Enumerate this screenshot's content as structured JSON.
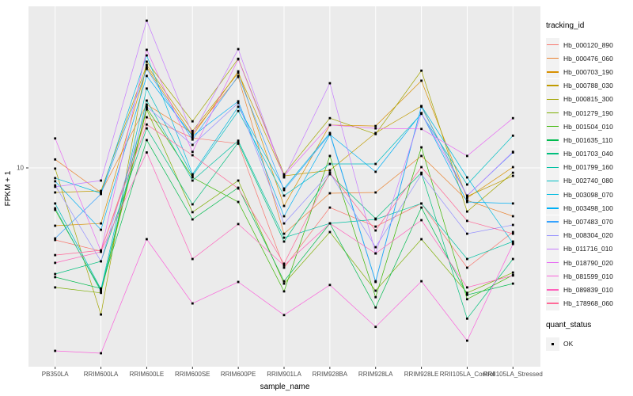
{
  "figure": {
    "y_axis": {
      "title": "FPKM + 1",
      "scale": "log10",
      "tick_labels": [
        "10"
      ]
    },
    "x_axis": {
      "title": "sample_name"
    },
    "legend": {
      "color_title": "tracking_id",
      "shape_title": "quant_status",
      "shape_items": [
        {
          "label": "OK",
          "marker": "black-square"
        }
      ]
    }
  },
  "chart_data": {
    "type": "line",
    "title": "",
    "xlabel": "sample_name",
    "ylabel": "FPKM + 1",
    "y_scale": "log10",
    "y_ticks": [
      10
    ],
    "ylim": [
      0.86,
      74
    ],
    "grid": "major-only",
    "legend_position": "right",
    "panel_bg": "#EBEBEB",
    "grid_color": "#FFFFFF",
    "point_color": "#000000",
    "quant_status": "OK",
    "categories": [
      "PB350LA",
      "RRIM600LA",
      "RRIM600LE",
      "RRIM600SE",
      "RRIM600PE",
      "RRIM901LA",
      "RRIM928BA",
      "RRIM928LA",
      "RRIM928LE",
      "RRII105LA_Control",
      "RRII105LA_Stressed"
    ],
    "series": [
      {
        "name": "Hb_000120_890",
        "color": "#F8766D",
        "values": [
          4.1,
          3.57,
          18.7,
          14.5,
          13.5,
          2.91,
          6.12,
          4.84,
          6.44,
          2.91,
          4.52
        ]
      },
      {
        "name": "Hb_000476_060",
        "color": "#EA8331",
        "values": [
          11.1,
          7.38,
          21.9,
          15.4,
          30.8,
          4.43,
          7.31,
          7.38,
          11.6,
          6.69,
          5.5
        ]
      },
      {
        "name": "Hb_000703_190",
        "color": "#D89000",
        "values": [
          4.89,
          5.03,
          34.7,
          14.9,
          33.0,
          6.25,
          17.0,
          16.8,
          29.4,
          6.89,
          10.1
        ]
      },
      {
        "name": "Hb_000788_030",
        "color": "#C09B00",
        "values": [
          7.38,
          7.53,
          35.7,
          15.8,
          32.4,
          9.06,
          9.71,
          15.4,
          21.5,
          7.03,
          9.06
        ]
      },
      {
        "name": "Hb_000815_300",
        "color": "#A3A500",
        "values": [
          9.91,
          1.63,
          37.2,
          17.8,
          38.6,
          9.25,
          18.5,
          15.2,
          33.3,
          5.83,
          9.42
        ]
      },
      {
        "name": "Hb_001279_190",
        "color": "#7CAE00",
        "values": [
          2.28,
          2.13,
          20.6,
          5.78,
          8.55,
          2.39,
          4.52,
          2.19,
          4.14,
          2.13,
          2.74
        ]
      },
      {
        "name": "Hb_001504_010",
        "color": "#39B600",
        "values": [
          5.95,
          2.21,
          21.0,
          8.89,
          6.56,
          2.17,
          11.6,
          2.02,
          12.9,
          1.97,
          2.66
        ]
      },
      {
        "name": "Hb_001635_110",
        "color": "#00BB4E",
        "values": [
          2.59,
          2.25,
          14.1,
          5.29,
          7.83,
          2.46,
          5.03,
          1.78,
          6.12,
          2.08,
          2.39
        ]
      },
      {
        "name": "Hb_001703_040",
        "color": "#00BF7D",
        "values": [
          2.69,
          3.15,
          16.3,
          6.37,
          13.7,
          4.02,
          9.25,
          5.34,
          9.42,
          1.55,
          3.24
        ]
      },
      {
        "name": "Hb_001799_160",
        "color": "#00C1A3",
        "values": [
          6.07,
          2.17,
          23.0,
          8.55,
          14.0,
          4.22,
          5.03,
          5.29,
          6.44,
          3.24,
          4.02
        ]
      },
      {
        "name": "Hb_002740_080",
        "color": "#00BFC4",
        "values": [
          6.44,
          2.23,
          26.7,
          9.06,
          20.2,
          7.1,
          10.5,
          10.5,
          19.5,
          8.14,
          14.9
        ]
      },
      {
        "name": "Hb_003098_070",
        "color": "#00BAE0",
        "values": [
          8.81,
          7.31,
          40.2,
          9.25,
          21.3,
          7.75,
          15.4,
          2.46,
          21.5,
          8.89,
          3.94
        ]
      },
      {
        "name": "Hb_003498_100",
        "color": "#00B0F6",
        "values": [
          8.47,
          4.65,
          31.2,
          14.8,
          22.8,
          5.5,
          15.1,
          9.53,
          19.7,
          6.56,
          6.44
        ]
      },
      {
        "name": "Hb_007483_070",
        "color": "#35A2FF",
        "values": [
          4.18,
          7.24,
          34.0,
          14.2,
          31.2,
          7.6,
          15.2,
          2.44,
          21.3,
          7.1,
          12.1
        ]
      },
      {
        "name": "Hb_008304_020",
        "color": "#9590FF",
        "values": [
          8.06,
          3.15,
          21.3,
          13.3,
          22.3,
          5.03,
          9.42,
          3.75,
          9.25,
          4.43,
          4.94
        ]
      },
      {
        "name": "Hb_011716_010",
        "color": "#C77CFF",
        "values": [
          7.91,
          8.55,
          61.8,
          15.1,
          43.5,
          8.89,
          28.5,
          3.47,
          19.7,
          7.1,
          12.2
        ]
      },
      {
        "name": "Hb_018790_020",
        "color": "#E76BF3",
        "values": [
          14.4,
          3.57,
          43.1,
          12.2,
          38.3,
          9.06,
          17.0,
          16.3,
          16.2,
          11.6,
          18.5
        ]
      },
      {
        "name": "Hb_081599_010",
        "color": "#FA62DB",
        "values": [
          1.04,
          1.01,
          4.14,
          1.87,
          2.44,
          1.62,
          2.35,
          1.4,
          2.46,
          1.18,
          3.9
        ]
      },
      {
        "name": "Hb_089839_010",
        "color": "#FF62BC",
        "values": [
          3.09,
          3.54,
          12.1,
          3.24,
          4.99,
          2.99,
          5.03,
          3.47,
          5.24,
          2.28,
          2.64
        ]
      },
      {
        "name": "Hb_178968_060",
        "color": "#FF6A98",
        "values": [
          3.4,
          3.61,
          17.1,
          11.7,
          7.75,
          3.06,
          9.42,
          4.61,
          10.1,
          5.19,
          4.43
        ]
      }
    ]
  }
}
